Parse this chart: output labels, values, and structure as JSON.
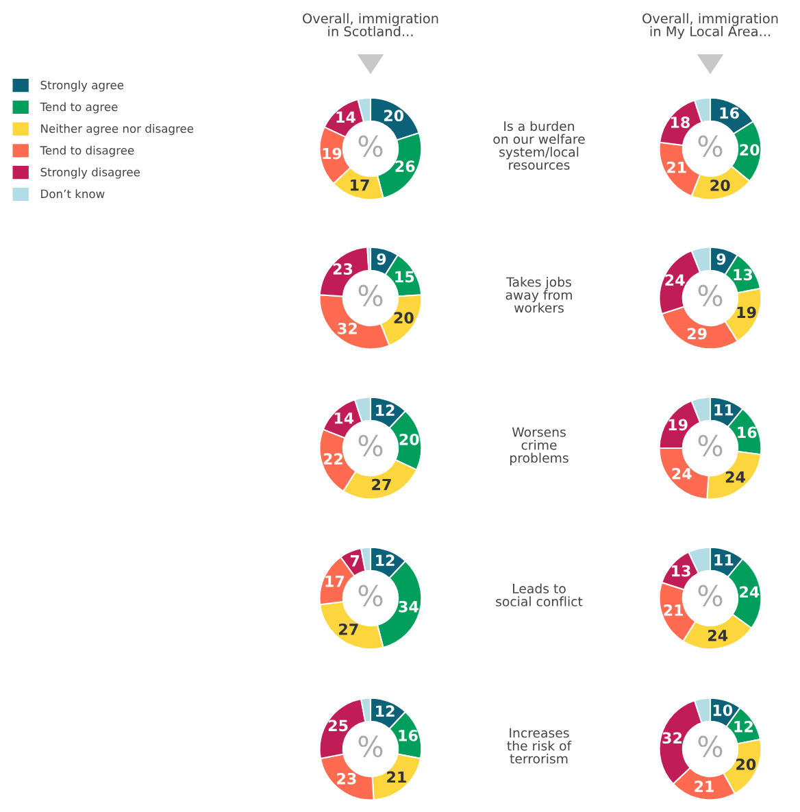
{
  "chart_data": [
    {
      "type": "donut",
      "title": "Overall, immigration\nin Scotland...",
      "annotations": [
        "Is a burden\non our welfare\nsystem/local\nresources",
        "%"
      ],
      "legend": "left",
      "categories": [
        "Strongly agree",
        "Tend to agree",
        "Neither agree nor disagree",
        "Tend to disagree",
        "Strongly disagree",
        "Don’t know"
      ],
      "values": [
        20,
        26,
        17,
        19,
        14,
        4
      ],
      "value_labels": [
        "20",
        "26",
        "17",
        "19",
        "14",
        null
      ],
      "colors": [
        "#0b6178",
        "#009e5c",
        "#fdd53c",
        "#ff6b50",
        "#c01c56",
        "#b3dde6"
      ]
    },
    {
      "type": "donut",
      "title": "Overall, immigration\nin My Local Area...",
      "annotations": [
        "%"
      ],
      "categories": [
        null,
        null,
        null,
        null,
        null,
        null
      ],
      "values": [
        16,
        20,
        20,
        21,
        18,
        5
      ],
      "value_labels": [
        "16",
        "20",
        "20",
        "21",
        "18",
        null
      ],
      "colors": [
        "#0b6178",
        "#009e5c",
        "#fdd53c",
        "#ff6b50",
        "#c01c56",
        "#b3dde6"
      ]
    },
    {
      "type": "donut",
      "annotations": [
        "Takes jobs\naway from\nworkers",
        "%"
      ],
      "categories": [
        null,
        null,
        null,
        null,
        null,
        null
      ],
      "values": [
        9,
        15,
        20,
        32,
        23,
        1
      ],
      "value_labels": [
        "9",
        "15",
        "20",
        "32",
        "23",
        null
      ],
      "colors": [
        "#0b6178",
        "#009e5c",
        "#fdd53c",
        "#ff6b50",
        "#c01c56",
        "#b3dde6"
      ]
    },
    {
      "type": "donut",
      "annotations": [
        "%"
      ],
      "categories": [
        null,
        null,
        null,
        null,
        null,
        null
      ],
      "values": [
        9,
        13,
        19,
        29,
        24,
        6
      ],
      "value_labels": [
        "9",
        "13",
        "19",
        "29",
        "24",
        null
      ],
      "colors": [
        "#0b6178",
        "#009e5c",
        "#fdd53c",
        "#ff6b50",
        "#c01c56",
        "#b3dde6"
      ]
    },
    {
      "type": "donut",
      "annotations": [
        "Worsens\ncrime\nproblems",
        "%"
      ],
      "categories": [
        null,
        null,
        null,
        null,
        null,
        null
      ],
      "values": [
        12,
        20,
        27,
        22,
        14,
        5
      ],
      "value_labels": [
        "12",
        "20",
        "27",
        "22",
        "14",
        null
      ],
      "colors": [
        "#0b6178",
        "#009e5c",
        "#fdd53c",
        "#ff6b50",
        "#c01c56",
        "#b3dde6"
      ]
    },
    {
      "type": "donut",
      "annotations": [
        "%"
      ],
      "categories": [
        null,
        null,
        null,
        null,
        null,
        null
      ],
      "values": [
        11,
        16,
        24,
        24,
        19,
        6
      ],
      "value_labels": [
        "11",
        "16",
        "24",
        "24",
        "19",
        null
      ],
      "colors": [
        "#0b6178",
        "#009e5c",
        "#fdd53c",
        "#ff6b50",
        "#c01c56",
        "#b3dde6"
      ]
    },
    {
      "type": "donut",
      "annotations": [
        "Leads to\nsocial conflict",
        "%"
      ],
      "categories": [
        null,
        null,
        null,
        null,
        null,
        null
      ],
      "values": [
        12,
        34,
        27,
        17,
        7,
        3
      ],
      "value_labels": [
        "12",
        "34",
        "27",
        "17",
        "7",
        null
      ],
      "colors": [
        "#0b6178",
        "#009e5c",
        "#fdd53c",
        "#ff6b50",
        "#c01c56",
        "#b3dde6"
      ]
    },
    {
      "type": "donut",
      "annotations": [
        "%"
      ],
      "categories": [
        null,
        null,
        null,
        null,
        null,
        null
      ],
      "values": [
        11,
        24,
        24,
        21,
        13,
        7
      ],
      "value_labels": [
        "11",
        "24",
        "24",
        "21",
        "13",
        null
      ],
      "colors": [
        "#0b6178",
        "#009e5c",
        "#fdd53c",
        "#ff6b50",
        "#c01c56",
        "#b3dde6"
      ]
    },
    {
      "type": "donut",
      "annotations": [
        "Increases\nthe risk of\nterrorism",
        "%"
      ],
      "categories": [
        null,
        null,
        null,
        null,
        null,
        null
      ],
      "values": [
        12,
        16,
        21,
        23,
        25,
        3
      ],
      "value_labels": [
        "12",
        "16",
        "21",
        "23",
        "25",
        null
      ],
      "colors": [
        "#0b6178",
        "#009e5c",
        "#fdd53c",
        "#ff6b50",
        "#c01c56",
        "#b3dde6"
      ]
    },
    {
      "type": "donut",
      "annotations": [
        "%"
      ],
      "categories": [
        null,
        null,
        null,
        null,
        null,
        null
      ],
      "values": [
        10,
        12,
        20,
        21,
        32,
        5
      ],
      "value_labels": [
        "10",
        "12",
        "20",
        "21",
        "32",
        null
      ],
      "colors": [
        "#0b6178",
        "#009e5c",
        "#fdd53c",
        "#ff6b50",
        "#c01c56",
        "#b3dde6"
      ]
    }
  ]
}
